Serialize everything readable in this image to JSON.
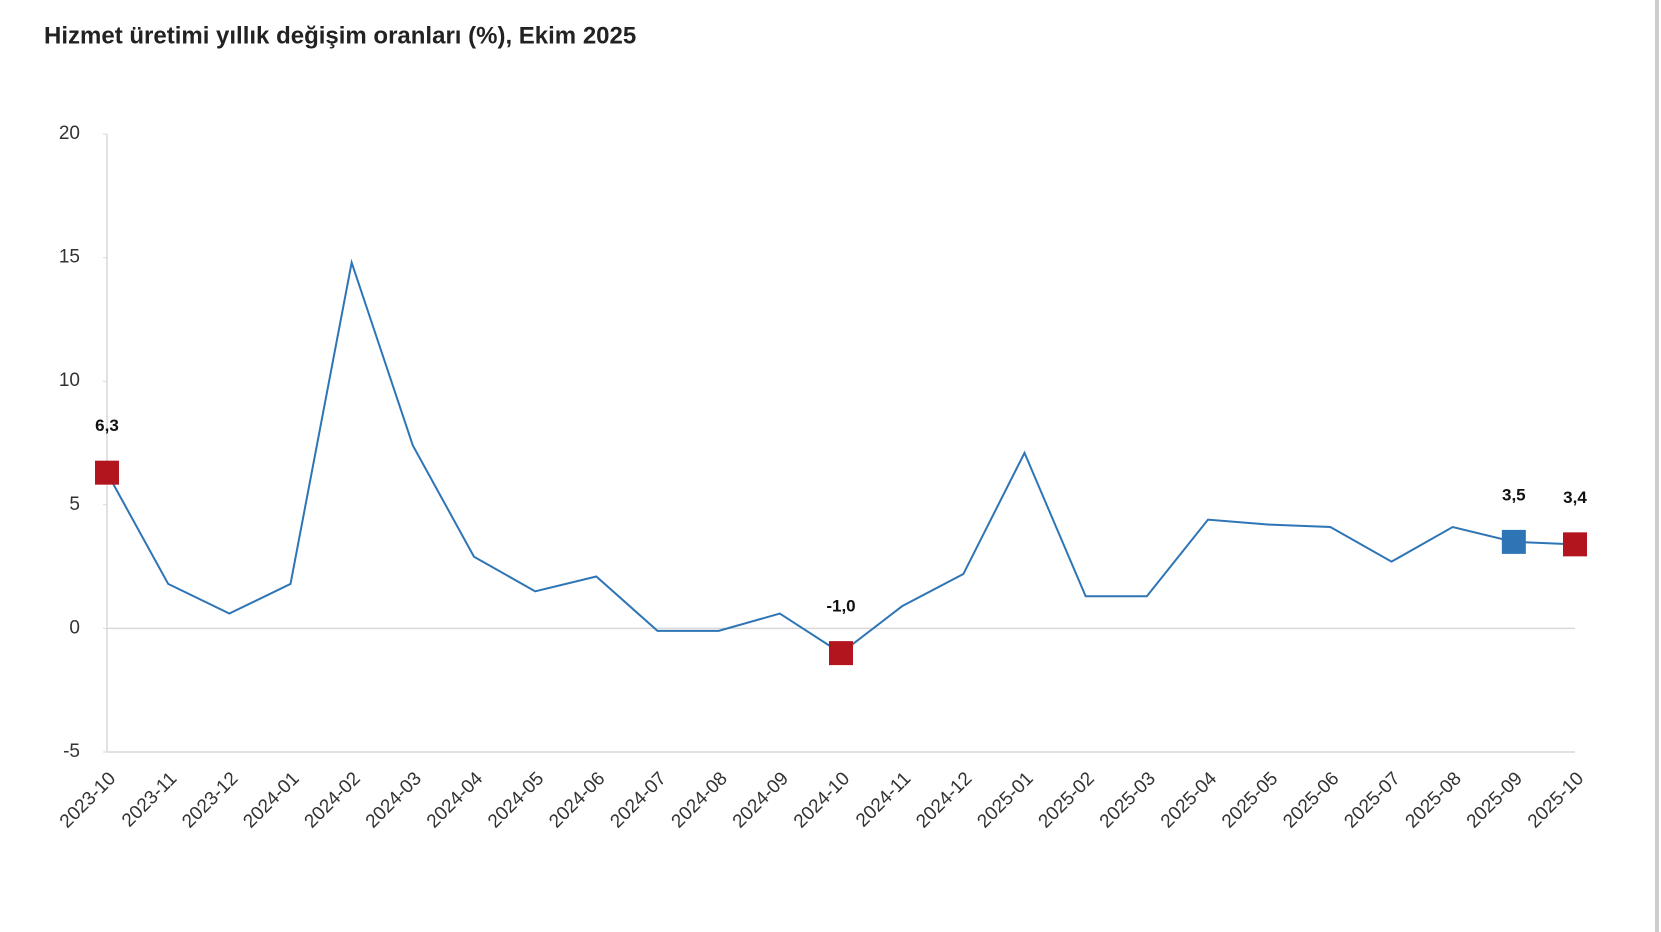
{
  "chart_data": {
    "type": "line",
    "title": "Hizmet üretimi yıllık değişim oranları (%), Ekim 2025",
    "categories": [
      "2023-10",
      "2023-11",
      "2023-12",
      "2024-01",
      "2024-02",
      "2024-03",
      "2024-04",
      "2024-05",
      "2024-06",
      "2024-07",
      "2024-08",
      "2024-09",
      "2024-10",
      "2024-11",
      "2024-12",
      "2025-01",
      "2025-02",
      "2025-03",
      "2025-04",
      "2025-05",
      "2025-06",
      "2025-07",
      "2025-08",
      "2025-09",
      "2025-10"
    ],
    "series": [
      {
        "color": "#2e75b6",
        "values": [
          6.3,
          1.8,
          0.6,
          1.8,
          14.8,
          7.4,
          2.9,
          1.5,
          2.1,
          -0.1,
          -0.1,
          0.6,
          -1.0,
          0.9,
          2.2,
          7.1,
          1.3,
          1.3,
          4.4,
          4.2,
          4.1,
          2.7,
          4.1,
          3.5,
          3.4
        ],
        "value_labels": [
          "6,3",
          null,
          null,
          null,
          null,
          null,
          null,
          null,
          null,
          null,
          null,
          null,
          "-1,0",
          null,
          null,
          null,
          null,
          null,
          null,
          null,
          null,
          null,
          null,
          "3,5",
          "3,4"
        ],
        "marker_colors": [
          "#b2151d",
          null,
          null,
          null,
          null,
          null,
          null,
          null,
          null,
          null,
          null,
          null,
          "#b2151d",
          null,
          null,
          null,
          null,
          null,
          null,
          null,
          null,
          null,
          null,
          "#2e75b6",
          "#b2151d"
        ]
      }
    ],
    "ylim": [
      -5,
      20
    ],
    "yticks": [
      -5,
      0,
      5,
      10,
      15,
      20
    ],
    "grid": false
  }
}
